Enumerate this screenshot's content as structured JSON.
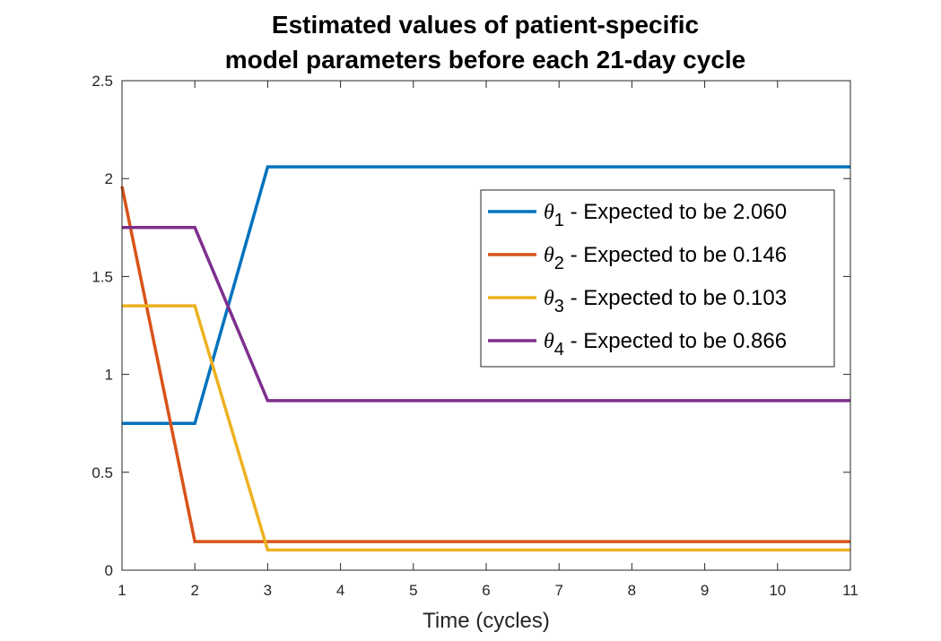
{
  "chart_data": {
    "type": "line",
    "title": [
      "Estimated values of patient-specific",
      "model parameters before each 21-day cycle"
    ],
    "xlabel": "Time (cycles)",
    "ylabel": "",
    "xlim": [
      1,
      11
    ],
    "ylim": [
      0,
      2.5
    ],
    "xticks": [
      1,
      2,
      3,
      4,
      5,
      6,
      7,
      8,
      9,
      10,
      11
    ],
    "xtick_labels": [
      "1",
      "2",
      "3",
      "4",
      "5",
      "6",
      "7",
      "8",
      "9",
      "10",
      "11"
    ],
    "yticks": [
      0,
      0.5,
      1,
      1.5,
      2,
      2.5
    ],
    "ytick_labels": [
      "0",
      "0.5",
      "1",
      "1.5",
      "2",
      "2.5"
    ],
    "grid": false,
    "legend_position": "top-right",
    "x": [
      1,
      2,
      3,
      4,
      5,
      6,
      7,
      8,
      9,
      10,
      11
    ],
    "series": [
      {
        "symbol": "θ",
        "subscript": "1",
        "label_rest": " - Expected to be 2.060",
        "color": "#0072BD",
        "values": [
          0.75,
          0.75,
          2.06,
          2.06,
          2.06,
          2.06,
          2.06,
          2.06,
          2.06,
          2.06,
          2.06
        ]
      },
      {
        "symbol": "θ",
        "subscript": "2",
        "label_rest": " - Expected to be 0.146",
        "color": "#D95319",
        "values": [
          1.96,
          0.146,
          0.146,
          0.146,
          0.146,
          0.146,
          0.146,
          0.146,
          0.146,
          0.146,
          0.146
        ]
      },
      {
        "symbol": "θ",
        "subscript": "3",
        "label_rest": " - Expected to be 0.103",
        "color": "#EDB120",
        "values": [
          1.35,
          1.35,
          0.103,
          0.103,
          0.103,
          0.103,
          0.103,
          0.103,
          0.103,
          0.103,
          0.103
        ]
      },
      {
        "symbol": "θ",
        "subscript": "4",
        "label_rest": " - Expected to be 0.866",
        "color": "#7E2F8E",
        "values": [
          1.75,
          1.75,
          0.866,
          0.866,
          0.866,
          0.866,
          0.866,
          0.866,
          0.866,
          0.866,
          0.866
        ]
      }
    ]
  }
}
